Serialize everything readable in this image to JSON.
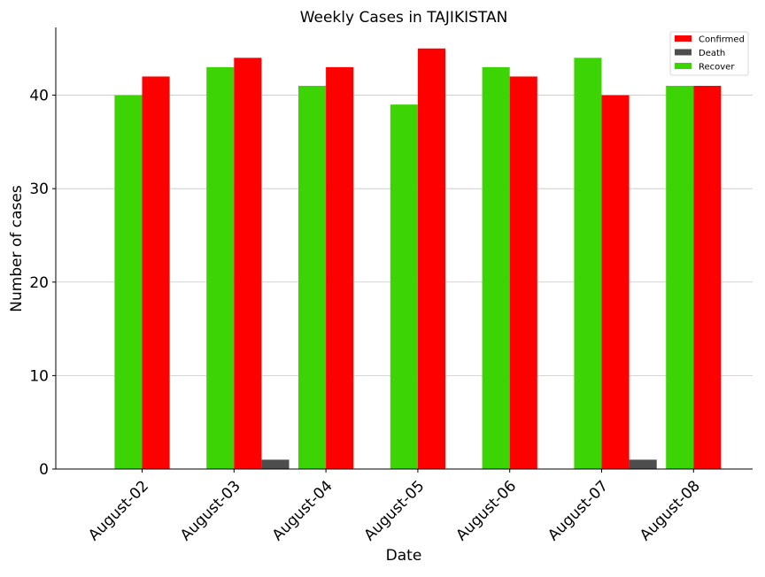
{
  "chart_data": {
    "type": "bar",
    "title": "Weekly Cases in TAJIKISTAN",
    "xlabel": "Date",
    "ylabel": "Number of cases",
    "categories": [
      "August-02",
      "August-03",
      "August-04",
      "August-05",
      "August-06",
      "August-07",
      "August-08"
    ],
    "series": [
      {
        "name": "Recover",
        "color": "#3dd406",
        "values": [
          40,
          43,
          41,
          39,
          43,
          44,
          41
        ]
      },
      {
        "name": "Confirmed",
        "color": "#ff0000",
        "values": [
          42,
          44,
          43,
          45,
          42,
          40,
          41
        ]
      },
      {
        "name": "Death",
        "color": "#4d4d4d",
        "values": [
          0,
          1,
          0,
          0,
          0,
          1,
          0
        ]
      }
    ],
    "legend_order": [
      "Confirmed",
      "Death",
      "Recover"
    ],
    "ylim": [
      0,
      47.25
    ],
    "yticks": [
      0,
      10,
      20,
      30,
      40
    ],
    "grid": "horizontal",
    "legend_position": "top-right"
  }
}
